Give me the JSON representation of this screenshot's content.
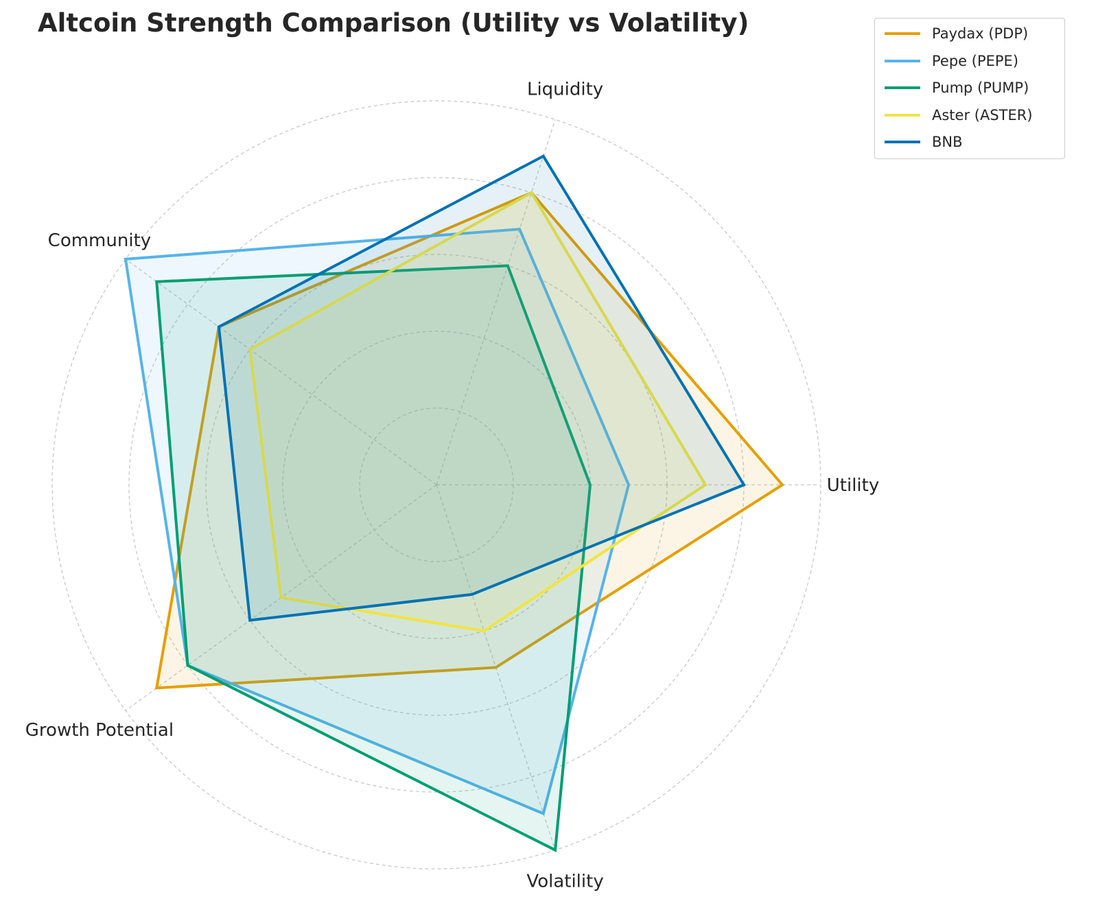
{
  "chart_data": {
    "type": "radar",
    "title": "Altcoin Strength Comparison (Utility vs Volatility)",
    "axes": [
      "Utility",
      "Liquidity",
      "Community",
      "Growth Potential",
      "Volatility"
    ],
    "rlim": [
      0,
      10
    ],
    "rings": [
      2,
      4,
      6,
      8,
      10
    ],
    "grid": true,
    "legend_position": "top-right",
    "series": [
      {
        "name": "Paydax (PDP)",
        "color": "#E69F00",
        "values": [
          9,
          8,
          7,
          9,
          5
        ]
      },
      {
        "name": "Pepe (PEPE)",
        "color": "#56B4E9",
        "values": [
          5,
          7,
          10,
          8,
          9
        ]
      },
      {
        "name": "Pump (PUMP)",
        "color": "#009E73",
        "values": [
          4,
          6,
          9,
          8,
          10
        ]
      },
      {
        "name": "Aster (ASTER)",
        "color": "#F0E442",
        "values": [
          7,
          8,
          6,
          5,
          4
        ]
      },
      {
        "name": "BNB",
        "color": "#0072B2",
        "values": [
          8,
          9,
          7,
          6,
          3
        ]
      }
    ]
  }
}
